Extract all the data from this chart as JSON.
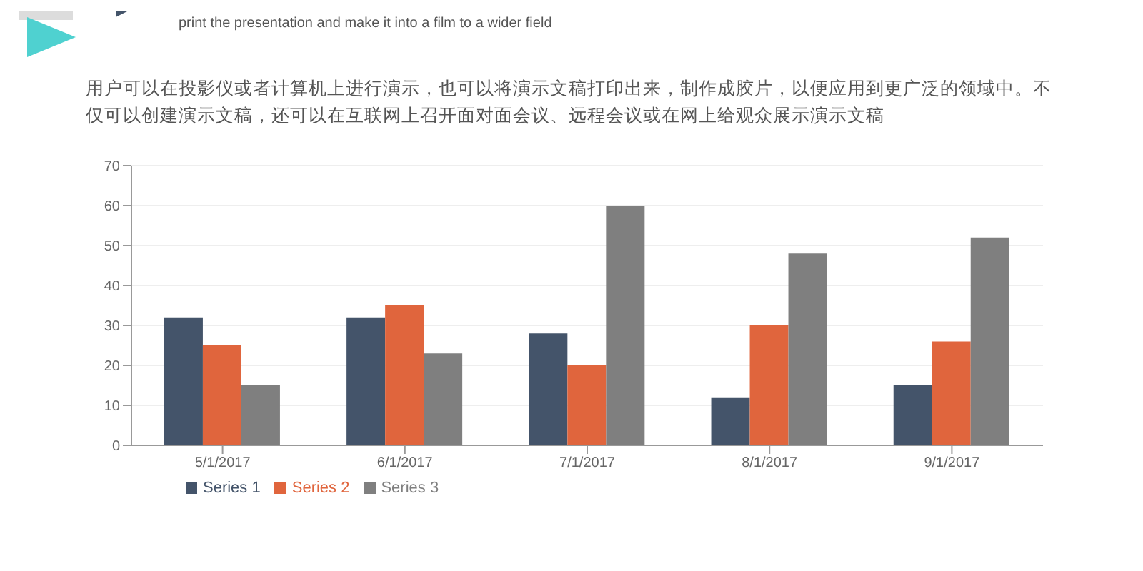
{
  "chart_data": {
    "type": "bar",
    "subtitle": "print the presentation and make it into a film to a wider field",
    "annotations": [
      "用户可以在投影仪或者计算机上进行演示，也可以将演示文稿打印出来，制作成胶片，以便应用到更广泛的领域中。不仅可以创建演示文稿，还可以在互联网上召开面对面会议、远程会议或在网上给观众展示演示文稿"
    ],
    "categories": [
      "5/1/2017",
      "6/1/2017",
      "7/1/2017",
      "8/1/2017",
      "9/1/2017"
    ],
    "series": [
      {
        "name": "Series 1",
        "color": "#44546a",
        "values": [
          32,
          32,
          28,
          12,
          15
        ]
      },
      {
        "name": "Series 2",
        "color": "#e0653d",
        "values": [
          25,
          35,
          20,
          30,
          26
        ]
      },
      {
        "name": "Series 3",
        "color": "#7f7f7f",
        "values": [
          15,
          23,
          60,
          48,
          52
        ]
      }
    ],
    "ylim": [
      0,
      70
    ],
    "yticks": [
      0,
      10,
      20,
      30,
      40,
      50,
      60,
      70
    ],
    "grid": "y",
    "legend": "bottom left"
  }
}
